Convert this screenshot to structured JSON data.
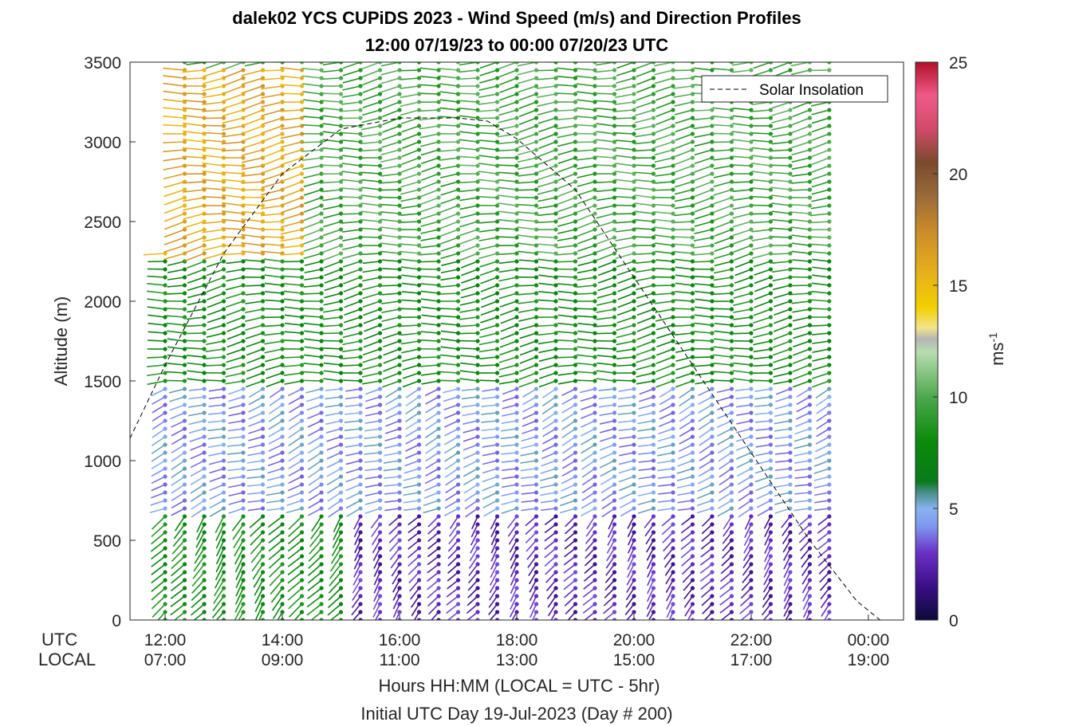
{
  "chart_data": {
    "type": "scatter",
    "title": "dalek02 YCS CUPiDS 2023 - Wind Speed (m/s) and Direction Profiles",
    "subtitle": "12:00 07/19/23 to 00:00 07/20/23  UTC",
    "ylabel": "Altitude (m)",
    "ylim": [
      0,
      3500
    ],
    "y_ticks": [
      "0",
      "500",
      "1000",
      "1500",
      "2000",
      "2500",
      "3000",
      "3500"
    ],
    "x_row_labels": [
      "UTC",
      "LOCAL"
    ],
    "x_ticks_utc": [
      "12:00",
      "14:00",
      "16:00",
      "18:00",
      "20:00",
      "22:00",
      "00:00"
    ],
    "x_ticks_local": [
      "07:00",
      "09:00",
      "11:00",
      "13:00",
      "15:00",
      "17:00",
      "19:00"
    ],
    "xlim_hours_utc": [
      11.4,
      24.6
    ],
    "xlabel_line1": "Hours HH:MM  (LOCAL = UTC - 5hr)",
    "xlabel_line2": "Initial UTC Day 19-Jul-2023 (Day # 200)",
    "legend": {
      "label": "Solar Insolation",
      "position": "top-right"
    },
    "colorbar": {
      "label": "ms",
      "label_exponent": "-1",
      "range": [
        0,
        25
      ],
      "ticks": [
        "0",
        "5",
        "10",
        "15",
        "20",
        "25"
      ],
      "stops": [
        [
          0,
          "#0d0a3a"
        ],
        [
          1.5,
          "#3a0f86"
        ],
        [
          3,
          "#6a2fc4"
        ],
        [
          4.2,
          "#7f96f0"
        ],
        [
          5,
          "#8ab3ef"
        ],
        [
          5.8,
          "#3e8a7a"
        ],
        [
          6.2,
          "#0b7a1c"
        ],
        [
          8,
          "#0a8a0a"
        ],
        [
          10,
          "#4ea84e"
        ],
        [
          12,
          "#b8dcb0"
        ],
        [
          12.6,
          "#b5b5b5"
        ],
        [
          13.1,
          "#f3e48a"
        ],
        [
          14,
          "#f2d000"
        ],
        [
          15.5,
          "#e8b11a"
        ],
        [
          17.5,
          "#c98a2b"
        ],
        [
          19,
          "#9a6a3a"
        ],
        [
          20.5,
          "#7a4a2e"
        ],
        [
          22,
          "#d14a6a"
        ],
        [
          23.5,
          "#f05a8a"
        ],
        [
          25,
          "#b0102a"
        ]
      ]
    },
    "profile_times_utc": [
      12.0,
      12.333,
      12.667,
      13.0,
      13.333,
      13.667,
      14.0,
      14.333,
      14.667,
      15.0,
      15.333,
      15.667,
      16.0,
      16.333,
      16.667,
      17.0,
      17.333,
      17.667,
      18.0,
      18.333,
      18.667,
      19.0,
      19.333,
      19.667,
      20.0,
      20.333,
      20.667,
      21.0,
      21.333,
      21.667,
      22.0,
      22.333,
      22.667,
      23.0,
      23.333
    ],
    "altitude_step_m": 50,
    "wind_speed_regimes": [
      {
        "altitude_m": [
          0,
          700
        ],
        "time_utc": [
          12.0,
          15.2
        ],
        "speed_ms": 8,
        "note": "green near-surface jet"
      },
      {
        "altitude_m": [
          0,
          700
        ],
        "time_utc": [
          15.2,
          23.4
        ],
        "speed_ms": 2.5
      },
      {
        "altitude_m": [
          700,
          1500
        ],
        "speed_ms": 4.5
      },
      {
        "altitude_m": [
          1500,
          2300
        ],
        "speed_ms": 8
      },
      {
        "altitude_m": [
          2300,
          3500
        ],
        "time_utc": [
          12.0,
          14.5
        ],
        "speed_ms": 16
      },
      {
        "altitude_m": [
          2300,
          3500
        ],
        "time_utc": [
          14.5,
          23.4
        ],
        "speed_ms": 9.5
      }
    ],
    "solar_insolation_curve": {
      "x_utc": [
        11.4,
        12.0,
        13.0,
        14.0,
        15.0,
        16.0,
        17.0,
        17.5,
        18.0,
        19.0,
        20.0,
        21.0,
        22.0,
        23.0,
        23.8,
        24.2,
        24.4
      ],
      "y_m": [
        1140,
        1600,
        2300,
        2800,
        3080,
        3150,
        3150,
        3130,
        3020,
        2700,
        2150,
        1600,
        1050,
        500,
        120,
        0,
        0
      ]
    }
  }
}
